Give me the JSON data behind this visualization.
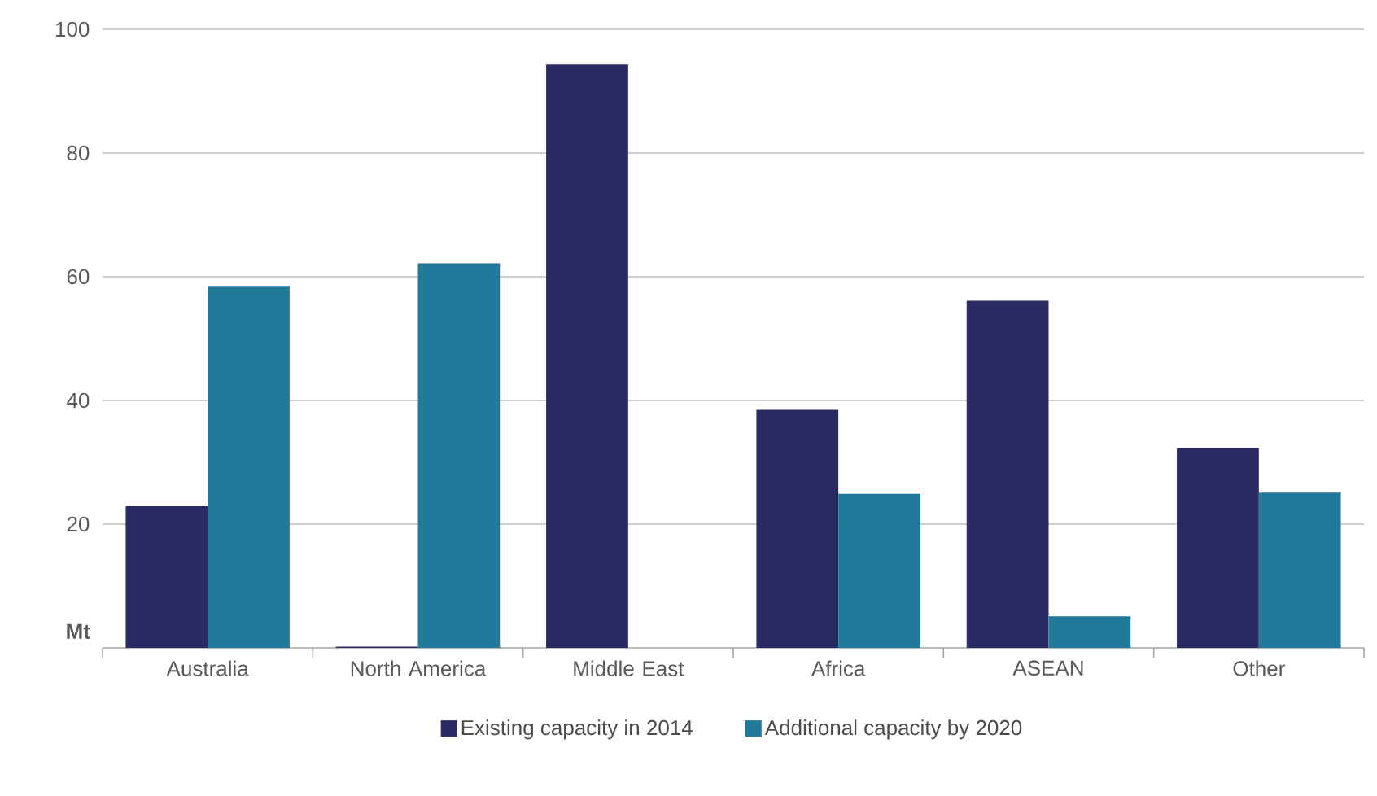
{
  "chart_data": {
    "type": "bar",
    "ylabel": "Mt",
    "categories": [
      "Australia",
      "North America",
      "Middle East",
      "Africa",
      "ASEAN",
      "Other"
    ],
    "series": [
      {
        "name": "Existing capacity in 2014",
        "color": "#2b2b63",
        "values": [
          22.9,
          0.2,
          94.3,
          38.5,
          56.1,
          32.3
        ]
      },
      {
        "name": "Additional capacity by 2020",
        "color": "#227a9a",
        "values": [
          58.4,
          62.2,
          null,
          24.9,
          5.1,
          25.1
        ]
      }
    ],
    "ylim": [
      0,
      100
    ],
    "yticks": [
      20,
      40,
      60,
      80,
      100
    ],
    "grid": "y",
    "legend": "bottom"
  }
}
